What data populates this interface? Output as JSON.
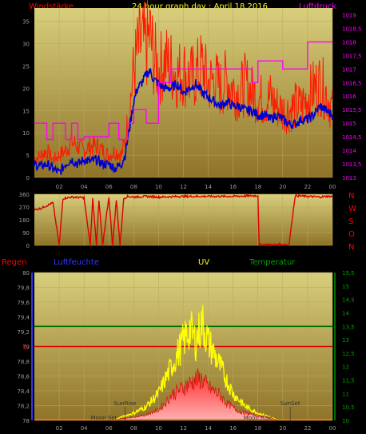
{
  "title": "24 hour graph day : April 18.2016",
  "colors": {
    "background": "#000000",
    "plot_top": "#d8cf7c",
    "plot_bottom": "#8f7328",
    "gust": "#ff1a00",
    "average": "#0000cc",
    "pressure": "#ff00ff",
    "direction": "#dd0000",
    "uv": "#ffff00",
    "rain_fill": "#ff2020",
    "temp": "#007000",
    "baseline_red": "#e00000",
    "axis_text": "#9a9a9a",
    "red_label": "#ff0000",
    "green_label": "#00a000",
    "blue_label": "#3333ff",
    "yellow_label": "#ffff00"
  },
  "chart_data": [
    {
      "id": "wind",
      "type": "line",
      "labels": {
        "left": "Windstärke",
        "right": "Luftdruck"
      },
      "x_ticks": [
        "02",
        "04",
        "06",
        "08",
        "10",
        "12",
        "14",
        "16",
        "18",
        "20",
        "22",
        "00"
      ],
      "y_ticks": [
        "0",
        "5",
        "10",
        "15",
        "20",
        "25",
        "30",
        "35"
      ],
      "y2_ticks": [
        "1013",
        "1013,5",
        "1014",
        "1014,5",
        "1015",
        "1015,5",
        "1016",
        "1016,5",
        "1017",
        "1017,5",
        "1018",
        "1018,5",
        "1019"
      ],
      "xlim": [
        0,
        24
      ],
      "ylim": [
        0,
        38
      ],
      "y2lim": [
        1013,
        1019.25
      ],
      "gust_keypoints": [
        [
          0,
          4
        ],
        [
          0.5,
          5
        ],
        [
          1,
          6
        ],
        [
          1.5,
          4
        ],
        [
          2,
          5
        ],
        [
          2.5,
          6
        ],
        [
          3,
          8
        ],
        [
          3.5,
          7
        ],
        [
          4,
          6
        ],
        [
          4.5,
          7
        ],
        [
          5,
          7
        ],
        [
          5.5,
          6
        ],
        [
          6,
          5
        ],
        [
          6.5,
          6
        ],
        [
          7,
          5
        ],
        [
          7.3,
          8
        ],
        [
          7.6,
          14
        ],
        [
          8,
          24
        ],
        [
          8.3,
          28
        ],
        [
          8.6,
          30
        ],
        [
          9,
          29
        ],
        [
          9.3,
          32
        ],
        [
          9.6,
          27
        ],
        [
          10,
          24
        ],
        [
          10.5,
          26
        ],
        [
          11,
          25
        ],
        [
          11.5,
          23
        ],
        [
          12,
          24
        ],
        [
          12.5,
          22
        ],
        [
          13,
          23
        ],
        [
          13.5,
          25
        ],
        [
          14,
          21
        ],
        [
          14.5,
          22
        ],
        [
          15,
          20
        ],
        [
          15.5,
          22
        ],
        [
          16,
          20
        ],
        [
          16.5,
          19
        ],
        [
          17,
          21
        ],
        [
          17.5,
          19
        ],
        [
          18,
          18
        ],
        [
          18.5,
          17
        ],
        [
          19,
          18
        ],
        [
          19.5,
          16
        ],
        [
          20,
          15
        ],
        [
          20.5,
          15
        ],
        [
          21,
          16
        ],
        [
          21.5,
          16
        ],
        [
          22,
          18
        ],
        [
          22.5,
          20
        ],
        [
          23,
          21
        ],
        [
          23.5,
          19
        ],
        [
          24,
          15
        ]
      ],
      "avg_keypoints": [
        [
          0,
          3
        ],
        [
          0.5,
          2.5
        ],
        [
          1,
          3
        ],
        [
          1.5,
          2
        ],
        [
          2,
          1
        ],
        [
          2.5,
          3
        ],
        [
          3,
          4
        ],
        [
          3.5,
          3
        ],
        [
          4,
          4
        ],
        [
          4.5,
          3.5
        ],
        [
          5,
          4
        ],
        [
          5.5,
          3
        ],
        [
          6,
          3
        ],
        [
          6.5,
          2
        ],
        [
          7,
          3
        ],
        [
          7.3,
          5
        ],
        [
          7.6,
          10
        ],
        [
          8,
          17
        ],
        [
          8.3,
          20
        ],
        [
          8.6,
          21
        ],
        [
          9,
          23
        ],
        [
          9.3,
          24
        ],
        [
          9.6,
          22
        ],
        [
          10,
          21
        ],
        [
          10.5,
          20
        ],
        [
          11,
          20
        ],
        [
          11.5,
          21
        ],
        [
          12,
          19
        ],
        [
          12.5,
          20
        ],
        [
          13,
          21
        ],
        [
          13.5,
          19
        ],
        [
          14,
          18
        ],
        [
          14.5,
          17
        ],
        [
          15,
          16
        ],
        [
          15.5,
          17
        ],
        [
          16,
          16
        ],
        [
          16.5,
          16
        ],
        [
          17,
          15
        ],
        [
          17.5,
          15
        ],
        [
          18,
          14
        ],
        [
          18.5,
          14
        ],
        [
          19,
          13
        ],
        [
          19.5,
          14
        ],
        [
          20,
          13
        ],
        [
          20.5,
          12
        ],
        [
          21,
          12
        ],
        [
          21.5,
          13
        ],
        [
          22,
          13
        ],
        [
          22.5,
          14
        ],
        [
          23,
          16
        ],
        [
          23.5,
          15
        ],
        [
          24,
          14
        ]
      ],
      "pressure_steps": [
        [
          0,
          1015
        ],
        [
          1,
          1014.4
        ],
        [
          1.5,
          1015
        ],
        [
          2.5,
          1014.4
        ],
        [
          3,
          1015
        ],
        [
          3.5,
          1014.4
        ],
        [
          4,
          1014.5
        ],
        [
          6,
          1015
        ],
        [
          6.8,
          1014.4
        ],
        [
          7.5,
          1015
        ],
        [
          8,
          1015.5
        ],
        [
          9,
          1015
        ],
        [
          10,
          1016.5
        ],
        [
          11,
          1017
        ],
        [
          17,
          1017
        ],
        [
          17.5,
          1016.5
        ],
        [
          18,
          1017.3
        ],
        [
          20,
          1017
        ],
        [
          22,
          1018
        ],
        [
          24,
          1018
        ]
      ]
    },
    {
      "id": "direction",
      "type": "line",
      "labels": {
        "compass": [
          "N",
          "W",
          "S",
          "O",
          "N"
        ]
      },
      "y_ticks": [
        "0",
        "90",
        "180",
        "270",
        "360"
      ],
      "xlim": [
        0,
        24
      ],
      "ylim": [
        0,
        360
      ],
      "keypoints": [
        [
          0,
          250
        ],
        [
          0.5,
          260
        ],
        [
          1,
          280
        ],
        [
          1.5,
          300
        ],
        [
          2,
          0
        ],
        [
          2.3,
          330
        ],
        [
          3,
          340
        ],
        [
          4,
          335
        ],
        [
          4.5,
          0
        ],
        [
          4.7,
          330
        ],
        [
          5,
          0
        ],
        [
          5.2,
          320
        ],
        [
          5.5,
          0
        ],
        [
          6,
          340
        ],
        [
          6.3,
          0
        ],
        [
          6.6,
          320
        ],
        [
          6.9,
          0
        ],
        [
          7.2,
          330
        ],
        [
          7.5,
          345
        ],
        [
          8,
          340
        ],
        [
          9,
          345
        ],
        [
          10,
          340
        ],
        [
          12,
          345
        ],
        [
          14,
          345
        ],
        [
          16,
          345
        ],
        [
          18,
          350
        ],
        [
          18.1,
          5
        ],
        [
          20,
          5
        ],
        [
          20.5,
          5
        ],
        [
          21,
          350
        ],
        [
          22,
          345
        ],
        [
          23,
          340
        ],
        [
          23.5,
          345
        ],
        [
          24,
          345
        ]
      ]
    },
    {
      "id": "weather",
      "type": "area",
      "labels": {
        "rain": "Regen",
        "humidity": "Luftfeuchte",
        "uv": "UV",
        "temp": "Temperatur"
      },
      "x_ticks": [
        "02",
        "04",
        "06",
        "08",
        "10",
        "12",
        "14",
        "16",
        "18",
        "20",
        "22",
        "00"
      ],
      "y_ticks": [
        "78",
        "78,2",
        "78,4",
        "78,6",
        "78,8",
        "79",
        "79,2",
        "79,4",
        "79,6",
        "79,8",
        "80"
      ],
      "y2_ticks": [
        "10",
        "10,5",
        "11",
        "11,5",
        "12",
        "12,5",
        "13",
        "13,5",
        "14",
        "14,5",
        "15",
        "15,5"
      ],
      "rain_zero_label": "0",
      "xlim": [
        0,
        24
      ],
      "ylim": [
        78,
        80
      ],
      "y2lim": [
        10,
        15.5
      ],
      "uv_keypoints": [
        [
          6.5,
          0
        ],
        [
          7,
          0.2
        ],
        [
          8,
          0.5
        ],
        [
          9,
          1
        ],
        [
          10,
          2
        ],
        [
          10.5,
          3
        ],
        [
          11,
          4
        ],
        [
          11.5,
          5
        ],
        [
          12,
          6
        ],
        [
          12.5,
          7
        ],
        [
          13,
          6
        ],
        [
          13.5,
          7.5
        ],
        [
          14,
          6
        ],
        [
          14.5,
          5
        ],
        [
          15,
          4
        ],
        [
          15.5,
          3
        ],
        [
          16,
          2
        ],
        [
          16.5,
          1.5
        ],
        [
          17,
          1
        ],
        [
          18,
          0.5
        ],
        [
          19,
          0.2
        ],
        [
          19.5,
          0
        ]
      ],
      "rain_keypoints": [
        [
          6.5,
          0
        ],
        [
          7,
          0.1
        ],
        [
          8,
          0.3
        ],
        [
          9,
          0.6
        ],
        [
          10,
          1.2
        ],
        [
          10.5,
          2
        ],
        [
          11,
          3
        ],
        [
          11.5,
          3.5
        ],
        [
          12,
          4
        ],
        [
          12.5,
          4.5
        ],
        [
          13,
          5
        ],
        [
          13.5,
          5
        ],
        [
          14,
          4
        ],
        [
          14.5,
          3.5
        ],
        [
          15,
          3
        ],
        [
          15.5,
          2
        ],
        [
          16,
          1.5
        ],
        [
          16.5,
          1
        ],
        [
          17,
          0.8
        ],
        [
          18,
          0.5
        ],
        [
          19,
          0.2
        ],
        [
          19.5,
          0
        ]
      ],
      "temp_level": 13.5,
      "red_level": 79,
      "events": [
        {
          "label": "SunRise",
          "x": 7.3,
          "row": 1
        },
        {
          "label": "SunSet",
          "x": 20.6,
          "row": 1
        },
        {
          "label": "Moon Set",
          "x": 5.6,
          "row": 2
        },
        {
          "label": "Moon Rise",
          "x": 18,
          "row": 2
        }
      ]
    }
  ]
}
